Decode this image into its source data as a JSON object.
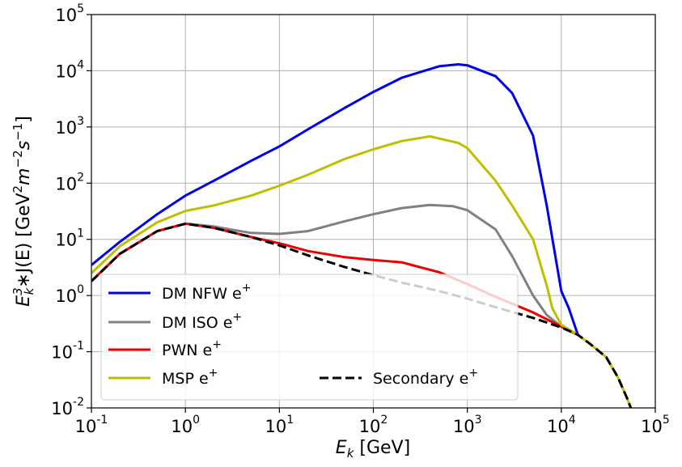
{
  "chart_data": {
    "type": "line",
    "xscale": "log",
    "yscale": "log",
    "xlim": [
      0.1,
      100000
    ],
    "ylim": [
      0.01,
      100000
    ],
    "grid": true,
    "x_tick_exponents": [
      "-1",
      "0",
      "1",
      "2",
      "3",
      "4",
      "5"
    ],
    "y_tick_exponents": [
      "-2",
      "-1",
      "0",
      "1",
      "2",
      "3",
      "4",
      "5"
    ],
    "tick_base": "10",
    "xlabel": {
      "main": "E",
      "sub": "k",
      "unit": " [GeV]"
    },
    "ylabel": {
      "base": "E",
      "sub": "k",
      "sup": "3",
      "body": "∗J(E) [GeV",
      "sup2": "2",
      "mid": "m",
      "sup3": "−2",
      "end": "s",
      "sup4": "−1",
      "close": "]"
    },
    "legend_position": "lower-left",
    "series": [
      {
        "name": "DM NFW e",
        "sup": "+",
        "color": "#0000ee",
        "dashed": false,
        "x": [
          0.1,
          0.2,
          0.5,
          1,
          2,
          5,
          10,
          20,
          50,
          100,
          200,
          500,
          800,
          1000,
          2000,
          3000,
          5000,
          7000,
          10000,
          12000,
          15000
        ],
        "y": [
          3.5,
          9,
          28,
          60,
          110,
          250,
          450,
          900,
          2200,
          4200,
          7500,
          12000,
          13000,
          12500,
          8000,
          4000,
          700,
          40,
          1.2,
          0.6,
          0.2
        ]
      },
      {
        "name": "DM ISO e",
        "sup": "+",
        "color": "#808080",
        "dashed": false,
        "x": [
          0.1,
          0.2,
          0.5,
          1,
          2,
          3,
          5,
          10,
          20,
          50,
          100,
          200,
          400,
          700,
          1000,
          2000,
          3000,
          5000,
          7000,
          10000,
          15000
        ],
        "y": [
          1.8,
          5.5,
          14,
          19,
          17,
          15,
          13,
          12.5,
          14,
          21,
          28,
          36,
          41,
          39,
          33,
          15,
          5,
          1,
          0.45,
          0.28,
          0.2
        ]
      },
      {
        "name": "PWN e",
        "sup": "+",
        "color": "#ee0000",
        "dashed": false,
        "x": [
          0.1,
          0.2,
          0.5,
          1,
          2,
          5,
          10,
          20,
          50,
          100,
          200,
          500,
          1000,
          2000,
          5000,
          10000,
          15000
        ],
        "y": [
          1.8,
          5.5,
          14,
          19,
          16,
          11,
          8.5,
          6.2,
          4.8,
          4.3,
          3.9,
          2.6,
          1.6,
          0.95,
          0.5,
          0.28,
          0.2
        ]
      },
      {
        "name": "MSP e",
        "sup": "+",
        "color": "#bfbf00",
        "dashed": false,
        "x": [
          0.1,
          0.2,
          0.5,
          1,
          2,
          3,
          5,
          10,
          20,
          50,
          100,
          200,
          400,
          800,
          1000,
          2000,
          3000,
          5000,
          7000,
          8000,
          10000,
          15000,
          20000,
          30000,
          40000,
          50000,
          55000
        ],
        "y": [
          2.5,
          7.5,
          20,
          32,
          40,
          48,
          60,
          90,
          140,
          270,
          400,
          560,
          680,
          520,
          420,
          110,
          40,
          10,
          1.5,
          0.6,
          0.3,
          0.2,
          0.14,
          0.08,
          0.035,
          0.015,
          0.01
        ]
      },
      {
        "name": "Secondary e",
        "sup": "+",
        "color": "#000000",
        "dashed": true,
        "x": [
          0.1,
          0.2,
          0.5,
          1,
          2,
          5,
          10,
          20,
          50,
          100,
          200,
          500,
          1000,
          2000,
          5000,
          10000,
          15000,
          20000,
          30000,
          40000,
          50000,
          55000
        ],
        "y": [
          1.8,
          5.5,
          14,
          19,
          16,
          11,
          7.8,
          5.2,
          3.2,
          2.3,
          1.7,
          1.2,
          0.88,
          0.62,
          0.4,
          0.27,
          0.2,
          0.14,
          0.08,
          0.035,
          0.015,
          0.01
        ]
      }
    ]
  }
}
